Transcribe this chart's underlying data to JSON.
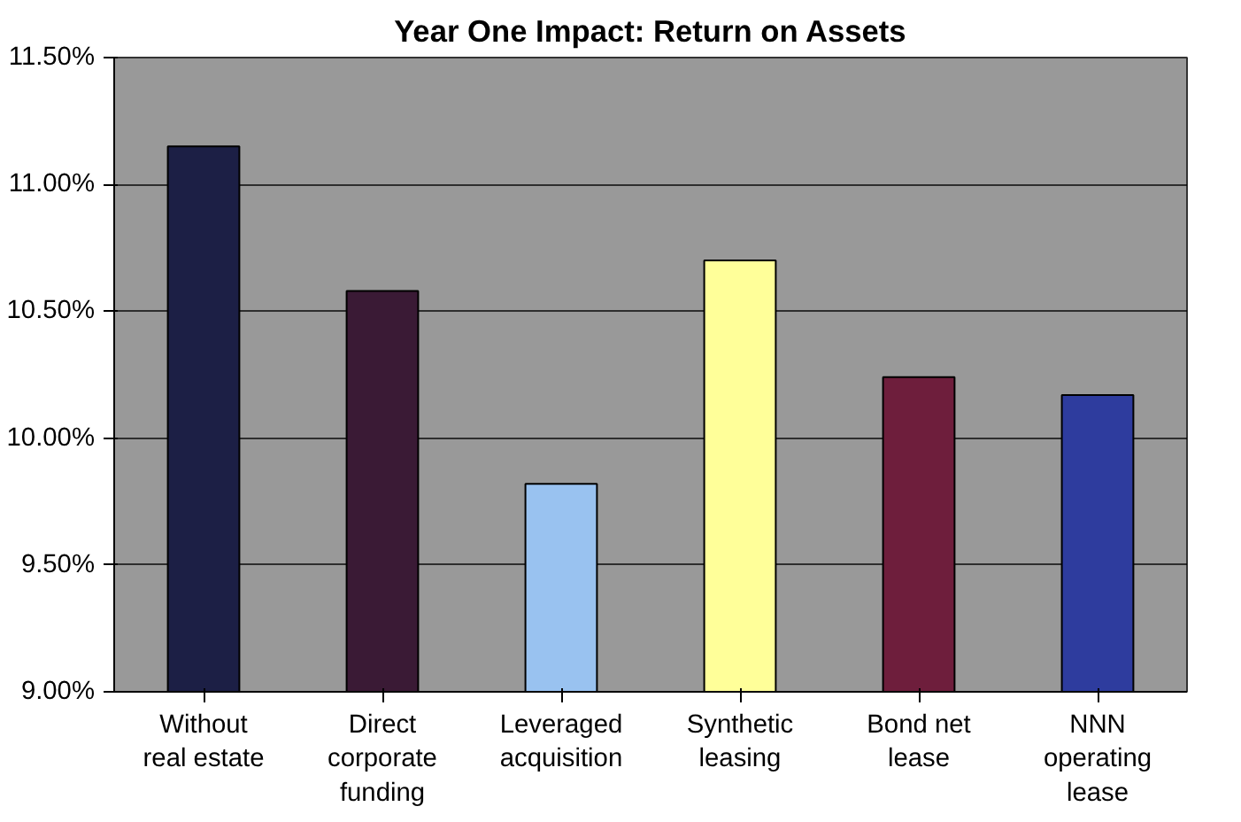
{
  "chart_data": {
    "type": "bar",
    "title": "Year One Impact: Return on Assets",
    "categories": [
      "Without real estate",
      "Direct corporate funding",
      "Leveraged acquisition",
      "Synthetic leasing",
      "Bond net lease",
      "NNN operating lease"
    ],
    "values": [
      11.15,
      10.58,
      9.82,
      10.7,
      10.24,
      10.17
    ],
    "colors": [
      "#1c1f45",
      "#3a1a35",
      "#99c2f0",
      "#ffff99",
      "#6e1e3c",
      "#2e3c9e"
    ],
    "ylim": [
      9.0,
      11.5
    ],
    "yticks": [
      {
        "value": 9.0,
        "label": "9.00%"
      },
      {
        "value": 9.5,
        "label": "9.50%"
      },
      {
        "value": 10.0,
        "label": "10.00%"
      },
      {
        "value": 10.5,
        "label": "10.50%"
      },
      {
        "value": 11.0,
        "label": "11.00%"
      },
      {
        "value": 11.5,
        "label": "11.50%"
      }
    ],
    "grid": "y"
  }
}
